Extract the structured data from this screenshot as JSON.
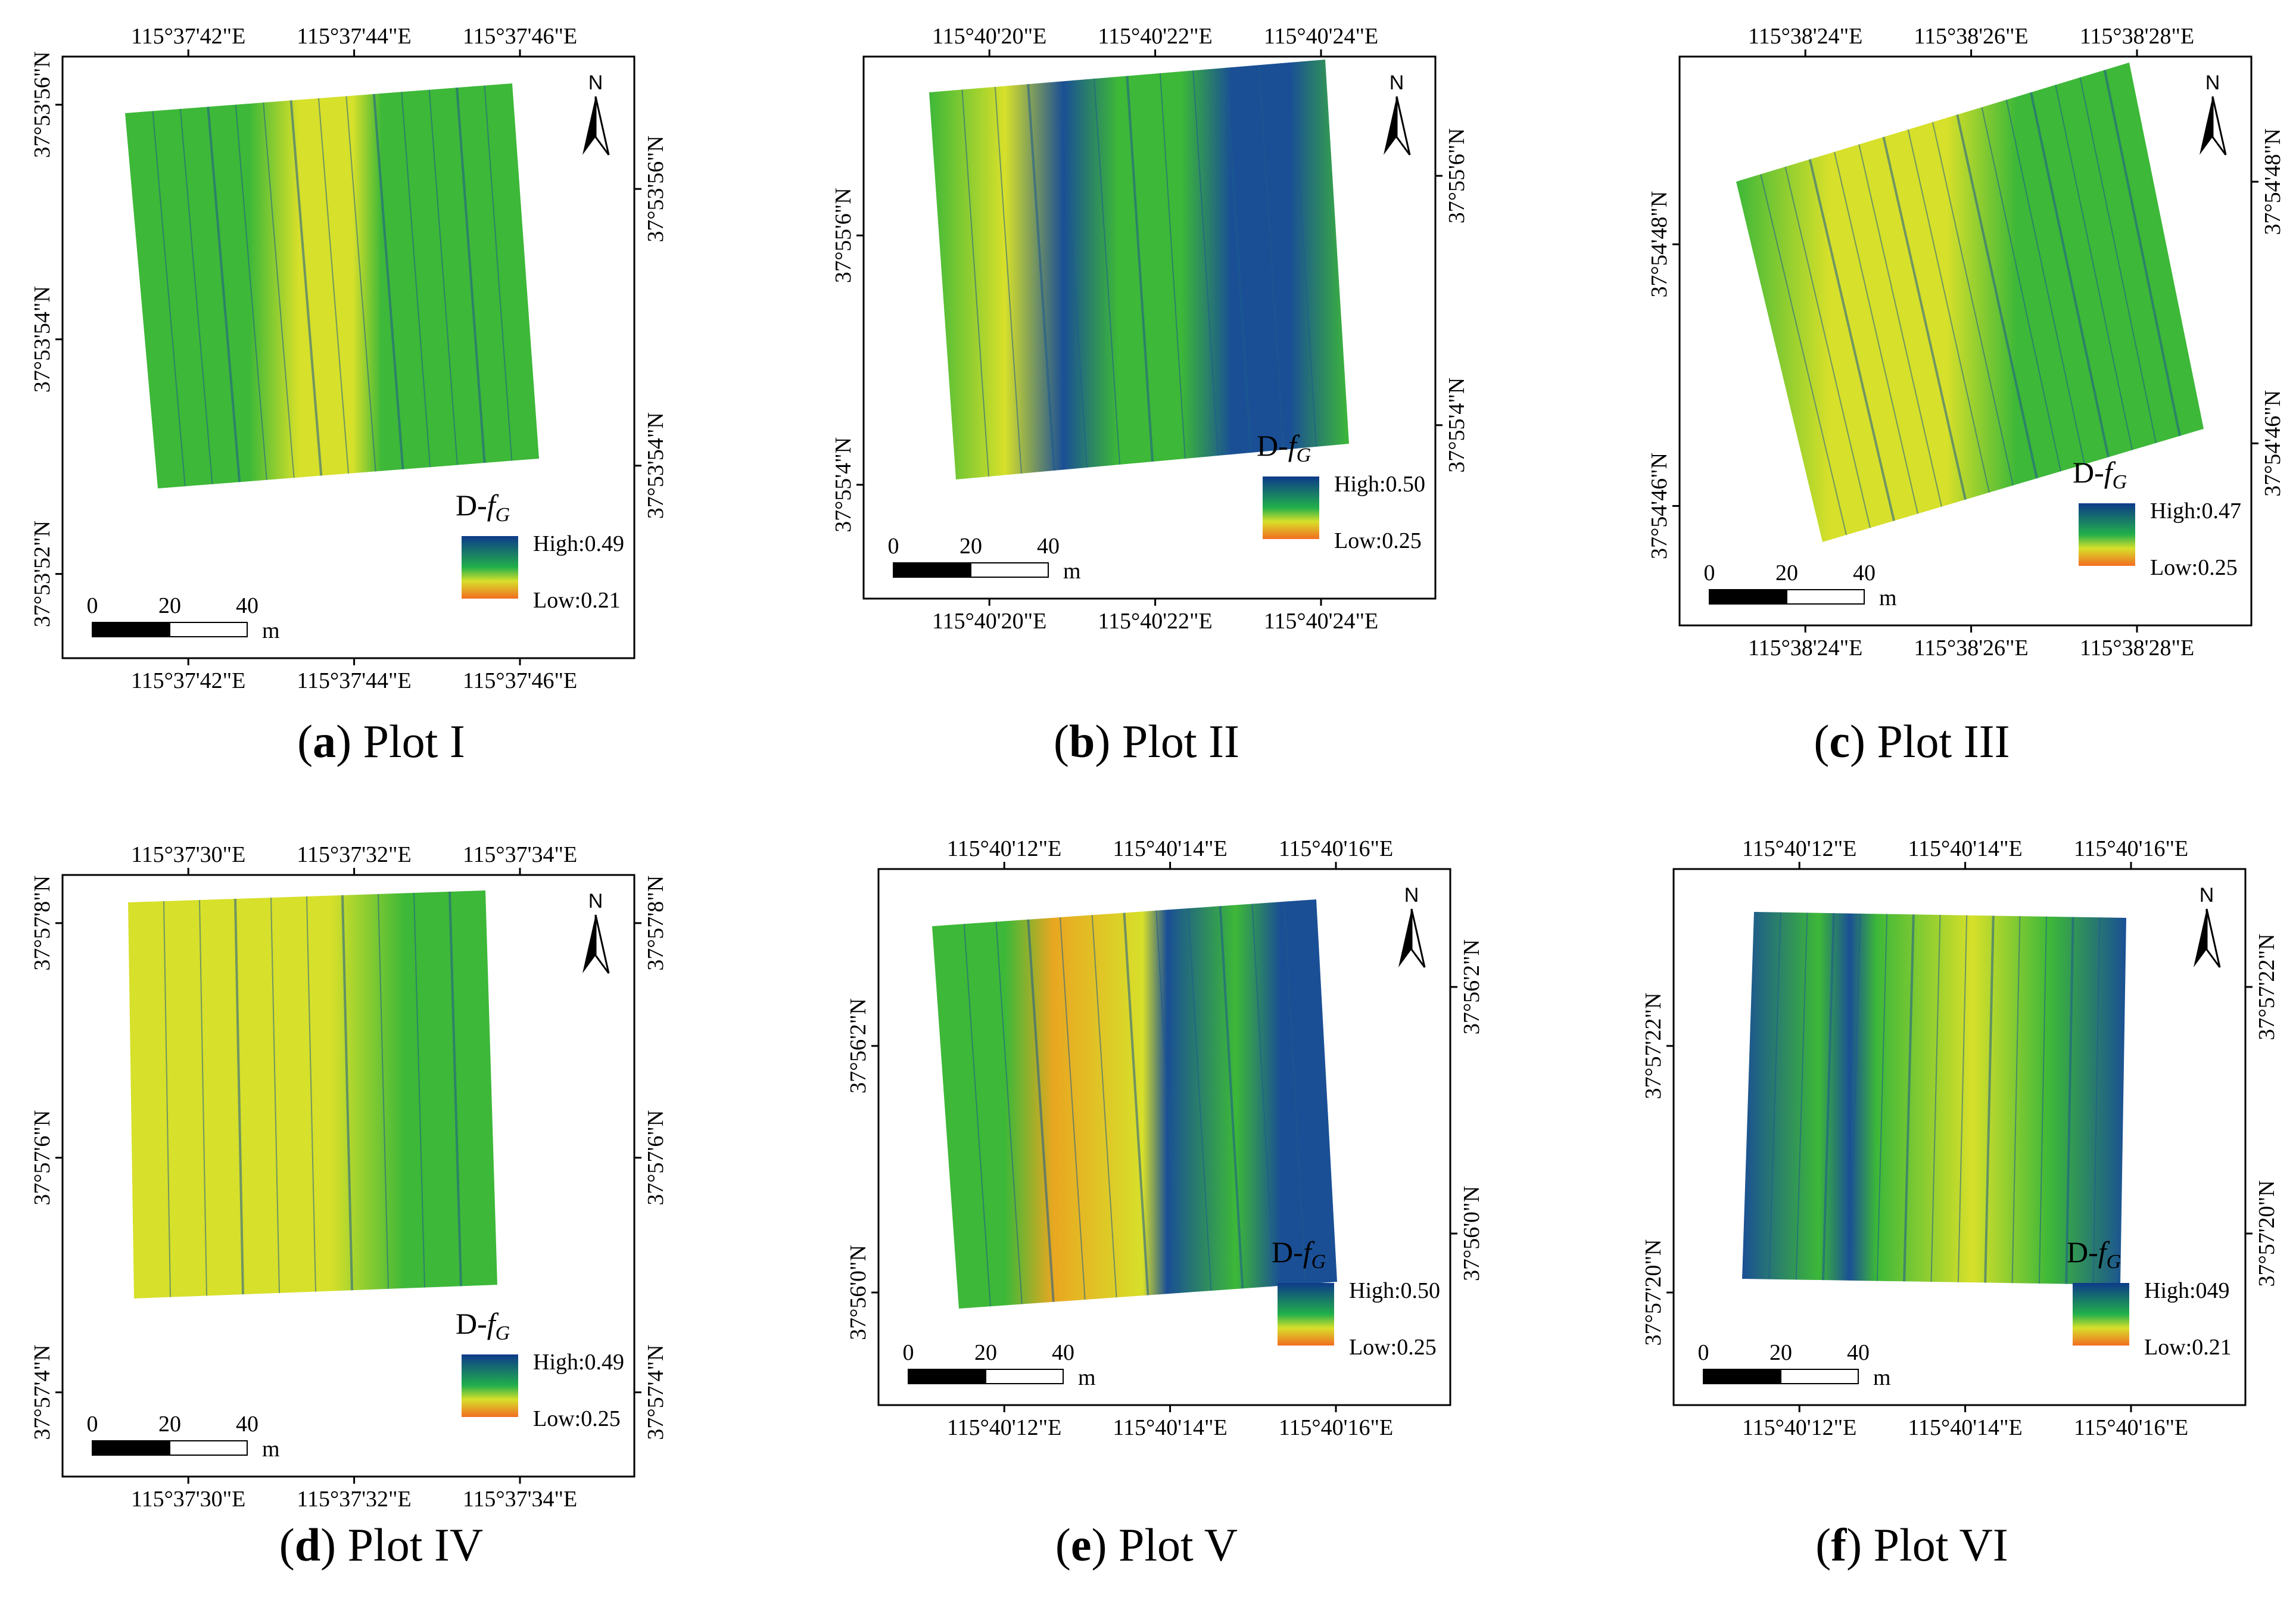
{
  "legend_title_prefix": "D-",
  "legend_title_var": "f",
  "legend_title_sub": "G",
  "north_label": "N",
  "scale_unit": "m",
  "scale_ticks": [
    "0",
    "20",
    "40"
  ],
  "colors": {
    "legend_high": "#0d3a8a",
    "legend_mid": "#22b04b",
    "legend_low": "#f26d21",
    "field_green": "#3db838",
    "field_yellow": "#d7e02a",
    "field_blue": "#1a4f95",
    "field_orange": "#e9a721"
  },
  "panels": [
    {
      "id": "a",
      "letter": "a",
      "caption": "Plot I",
      "top_lon": [
        "115°37'42\"E",
        "115°37'44\"E",
        "115°37'46\"E"
      ],
      "bottom_lon": [
        "115°37'42\"E",
        "115°37'44\"E",
        "115°37'46\"E"
      ],
      "left_lat": [
        "37°53'56\"N",
        "37°53'54\"N",
        "37°53'52\"N"
      ],
      "right_lat": [
        "37°53'56\"N",
        "37°53'54\"N"
      ],
      "high": "High:0.49",
      "low": "Low:0.21"
    },
    {
      "id": "b",
      "letter": "b",
      "caption": "Plot II",
      "top_lon": [
        "115°40'20\"E",
        "115°40'22\"E",
        "115°40'24\"E"
      ],
      "bottom_lon": [
        "115°40'20\"E",
        "115°40'22\"E",
        "115°40'24\"E"
      ],
      "left_lat": [
        "37°55'6\"N",
        "37°55'4\"N"
      ],
      "right_lat": [
        "37°55'6\"N",
        "37°55'4\"N"
      ],
      "high": "High:0.50",
      "low": "Low:0.25"
    },
    {
      "id": "c",
      "letter": "c",
      "caption": "Plot III",
      "top_lon": [
        "115°38'24\"E",
        "115°38'26\"E",
        "115°38'28\"E"
      ],
      "bottom_lon": [
        "115°38'24\"E",
        "115°38'26\"E",
        "115°38'28\"E"
      ],
      "left_lat": [
        "37°54'48\"N",
        "37°54'46\"N"
      ],
      "right_lat": [
        "37°54'48\"N",
        "37°54'46\"N"
      ],
      "high": "High:0.47",
      "low": "Low:0.25"
    },
    {
      "id": "d",
      "letter": "d",
      "caption": "Plot IV",
      "top_lon": [
        "115°37'30\"E",
        "115°37'32\"E",
        "115°37'34\"E"
      ],
      "bottom_lon": [
        "115°37'30\"E",
        "115°37'32\"E",
        "115°37'34\"E"
      ],
      "left_lat": [
        "37°57'8\"N",
        "37°57'6\"N",
        "37°57'4\"N"
      ],
      "right_lat": [
        "37°57'8\"N",
        "37°57'6\"N",
        "37°57'4\"N"
      ],
      "high": "High:0.49",
      "low": "Low:0.25"
    },
    {
      "id": "e",
      "letter": "e",
      "caption": "Plot V",
      "top_lon": [
        "115°40'12\"E",
        "115°40'14\"E",
        "115°40'16\"E"
      ],
      "bottom_lon": [
        "115°40'12\"E",
        "115°40'14\"E",
        "115°40'16\"E"
      ],
      "left_lat": [
        "37°56'2\"N",
        "37°56'0\"N"
      ],
      "right_lat": [
        "37°56'2\"N",
        "37°56'0\"N"
      ],
      "high": "High:0.50",
      "low": "Low:0.25"
    },
    {
      "id": "f",
      "letter": "f",
      "caption": "Plot VI",
      "top_lon": [
        "115°40'12\"E",
        "115°40'14\"E",
        "115°40'16\"E"
      ],
      "bottom_lon": [
        "115°40'12\"E",
        "115°40'14\"E",
        "115°40'16\"E"
      ],
      "left_lat": [
        "37°57'22\"N",
        "37°57'20\"N"
      ],
      "right_lat": [
        "37°57'22\"N",
        "37°57'20\"N"
      ],
      "high": "High:049",
      "low": "Low:0.21"
    }
  ]
}
